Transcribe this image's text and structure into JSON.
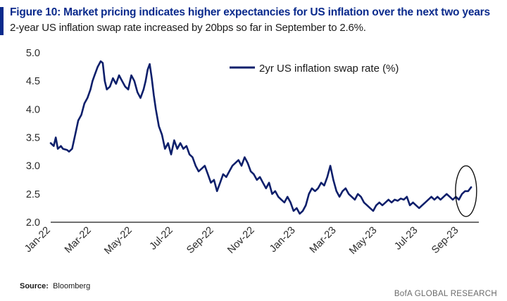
{
  "header": {
    "title": "Figure 10: Market pricing indicates higher expectancies for US inflation over the next two years",
    "subtitle": "2-year US inflation swap rate increased by 20bps so far in September to 2.6%."
  },
  "footer": {
    "source_label": "Source:",
    "source_value": "Bloomberg",
    "brand": "BofA GLOBAL RESEARCH"
  },
  "colors": {
    "line": "#0d1f6b",
    "title": "#0a2a8c"
  },
  "chart_data": {
    "type": "line",
    "title": "",
    "xlabel": "",
    "ylabel": "",
    "ylim": [
      2.0,
      5.0
    ],
    "yticks": [
      2.0,
      2.5,
      3.0,
      3.5,
      4.0,
      4.5,
      5.0
    ],
    "ytick_labels": [
      "2.0",
      "2.5",
      "3.0",
      "3.5",
      "4.0",
      "4.5",
      "5.0"
    ],
    "xlim": [
      0,
      20.7
    ],
    "x_tick_labels": [
      "Jan-22",
      "Mar-22",
      "May-22",
      "Jul-22",
      "Sep-22",
      "Nov-22",
      "Jan-23",
      "Mar-23",
      "May-23",
      "Jul-23",
      "Sep-23"
    ],
    "x_tick_months": [
      0,
      2,
      4,
      6,
      8,
      10,
      12,
      14,
      16,
      18,
      20
    ],
    "legend": "top-right",
    "grid": false,
    "annotation": "ellipse highlighting September 2023 rise",
    "series": [
      {
        "name": "2yr US inflation swap rate (%)",
        "x": [
          0,
          0.15,
          0.25,
          0.35,
          0.5,
          0.6,
          0.8,
          0.9,
          1.05,
          1.2,
          1.35,
          1.5,
          1.65,
          1.8,
          1.95,
          2.05,
          2.15,
          2.3,
          2.45,
          2.55,
          2.65,
          2.75,
          2.9,
          3.05,
          3.2,
          3.35,
          3.5,
          3.65,
          3.8,
          3.95,
          4.1,
          4.25,
          4.4,
          4.55,
          4.65,
          4.75,
          4.85,
          4.95,
          5.05,
          5.15,
          5.3,
          5.45,
          5.6,
          5.75,
          5.9,
          6.05,
          6.2,
          6.35,
          6.5,
          6.65,
          6.8,
          6.95,
          7.1,
          7.25,
          7.4,
          7.55,
          7.7,
          7.85,
          8.0,
          8.15,
          8.3,
          8.45,
          8.6,
          8.75,
          8.9,
          9.05,
          9.2,
          9.35,
          9.5,
          9.65,
          9.8,
          9.95,
          10.1,
          10.25,
          10.4,
          10.55,
          10.7,
          10.85,
          11.0,
          11.15,
          11.3,
          11.45,
          11.6,
          11.75,
          11.9,
          12.05,
          12.2,
          12.35,
          12.5,
          12.65,
          12.8,
          12.95,
          13.1,
          13.25,
          13.4,
          13.55,
          13.7,
          13.85,
          14.0,
          14.15,
          14.3,
          14.45,
          14.6,
          14.75,
          14.9,
          15.05,
          15.2,
          15.35,
          15.5,
          15.65,
          15.8,
          15.95,
          16.1,
          16.25,
          16.4,
          16.55,
          16.7,
          16.85,
          17.0,
          17.15,
          17.3,
          17.45,
          17.6,
          17.75,
          17.9,
          18.05,
          18.2,
          18.35,
          18.5,
          18.65,
          18.8,
          18.95,
          19.1,
          19.25,
          19.4,
          19.55,
          19.7,
          19.85,
          20.0,
          20.15,
          20.3,
          20.45,
          20.6
        ],
        "values": [
          3.4,
          3.35,
          3.5,
          3.3,
          3.35,
          3.3,
          3.28,
          3.25,
          3.3,
          3.55,
          3.8,
          3.9,
          4.1,
          4.2,
          4.35,
          4.5,
          4.6,
          4.75,
          4.85,
          4.82,
          4.5,
          4.35,
          4.4,
          4.55,
          4.45,
          4.6,
          4.5,
          4.4,
          4.35,
          4.6,
          4.5,
          4.3,
          4.2,
          4.35,
          4.5,
          4.7,
          4.8,
          4.55,
          4.25,
          4.0,
          3.7,
          3.55,
          3.3,
          3.4,
          3.2,
          3.45,
          3.3,
          3.4,
          3.3,
          3.35,
          3.2,
          3.15,
          3.0,
          2.9,
          2.95,
          3.0,
          2.85,
          2.7,
          2.75,
          2.55,
          2.7,
          2.85,
          2.8,
          2.9,
          3.0,
          3.05,
          3.1,
          3.0,
          3.15,
          3.05,
          2.9,
          2.85,
          2.75,
          2.8,
          2.7,
          2.6,
          2.7,
          2.5,
          2.55,
          2.45,
          2.4,
          2.35,
          2.45,
          2.35,
          2.2,
          2.25,
          2.15,
          2.2,
          2.3,
          2.5,
          2.6,
          2.55,
          2.6,
          2.7,
          2.65,
          2.8,
          3.0,
          2.75,
          2.55,
          2.45,
          2.55,
          2.6,
          2.5,
          2.45,
          2.4,
          2.5,
          2.45,
          2.35,
          2.3,
          2.25,
          2.2,
          2.3,
          2.35,
          2.3,
          2.35,
          2.4,
          2.35,
          2.4,
          2.38,
          2.42,
          2.4,
          2.45,
          2.3,
          2.35,
          2.3,
          2.25,
          2.3,
          2.35,
          2.4,
          2.45,
          2.4,
          2.45,
          2.4,
          2.45,
          2.5,
          2.45,
          2.4,
          2.45,
          2.4,
          2.5,
          2.55,
          2.55,
          2.62
        ]
      }
    ]
  }
}
